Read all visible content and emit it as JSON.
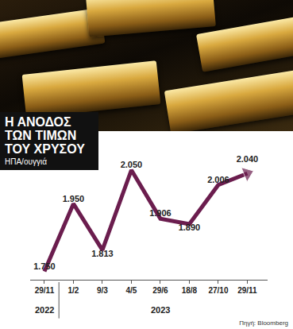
{
  "chart_data": {
    "type": "line",
    "title": "Η ΑΝΟΔΟΣ ΤΩΝ ΤΙΜΩΝ ΤΟΥ ΧΡΥΣΟΥ",
    "subtitle": "ΗΠΑ/ουγγιά",
    "source": "Πηγή: Bloomberg",
    "categories": [
      "29/11",
      "1/2",
      "9/3",
      "4/5",
      "29/6",
      "18/8",
      "27/10",
      "29/11"
    ],
    "year_labels": [
      "2022",
      "2023",
      "2023",
      "2023",
      "2023",
      "2023",
      "2023",
      "2023"
    ],
    "values": [
      1750,
      1950,
      1813,
      2050,
      1906,
      1890,
      2006,
      2040
    ],
    "value_labels": [
      "1.750",
      "1.950",
      "1.813",
      "2.050",
      "1.906",
      "1.890",
      "2.006",
      "2.040"
    ],
    "color": "#6b1d4e",
    "marker": "arrow",
    "line_style": "solid",
    "data_labels": true,
    "tick_labels": "x",
    "grid": false
  }
}
